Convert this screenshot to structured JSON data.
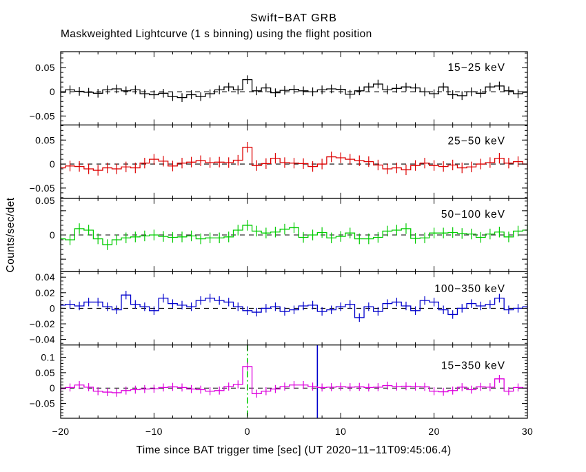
{
  "chart_data": {
    "type": "line",
    "title": "Swift−BAT GRB",
    "subtitle": "Maskweighted Lightcurve (1 s binning) using the flight position",
    "xlabel": "Time since BAT trigger time [sec] (UT 2020−11−11T09:45:06.4)",
    "ylabel": "Counts/sec/det",
    "xlim": [
      -20,
      30
    ],
    "xticks_major": [
      -20,
      -10,
      0,
      10,
      20,
      30
    ],
    "xtick_labels": [
      "−20",
      "−10",
      "0",
      "10",
      "20",
      "30"
    ],
    "xtick_minor_step": 2,
    "bin_width_sec": 1,
    "bin_centers_start": -20,
    "zero_line": {
      "style": "dashed",
      "color": "#000000"
    },
    "panels": [
      {
        "name": "15−25 keV",
        "color": "#000000",
        "ylim": [
          -0.0686,
          0.0829
        ],
        "ytick_minor_step": 0.01,
        "yticks": [
          {
            "v": 0.05,
            "label": "0.05"
          },
          {
            "v": 0,
            "label": "0"
          },
          {
            "v": -0.05,
            "label": "−0.05"
          }
        ],
        "err": 0.009,
        "values": [
          -0.001,
          0.004,
          0.001,
          -0.001,
          -0.003,
          0.004,
          0.006,
          0.002,
          0.004,
          -0.004,
          -0.006,
          -0.003,
          -0.01,
          -0.012,
          -0.006,
          -0.01,
          -0.004,
          0.004,
          0.01,
          0.004,
          0.025,
          0.002,
          0.008,
          -0.002,
          0.003,
          0.005,
          0.002,
          0.0,
          0.004,
          0.006,
          0.005,
          -0.005,
          0.002,
          0.01,
          0.016,
          0.004,
          0.007,
          0.01,
          0.008,
          0.0,
          -0.004,
          0.01,
          -0.006,
          -0.008,
          0.0,
          -0.003,
          0.01,
          0.012,
          0.002,
          -0.004,
          -0.001
        ]
      },
      {
        "name": "25−50 keV",
        "color": "#dd0000",
        "ylim": [
          -0.0714,
          0.0814
        ],
        "ytick_minor_step": 0.01,
        "yticks": [
          {
            "v": 0.05,
            "label": "0.05"
          },
          {
            "v": 0,
            "label": "0"
          },
          {
            "v": -0.05,
            "label": "−0.05"
          }
        ],
        "err": 0.011,
        "values": [
          -0.008,
          -0.004,
          -0.005,
          -0.01,
          -0.013,
          -0.008,
          -0.01,
          -0.006,
          -0.008,
          0.002,
          0.01,
          0.006,
          -0.004,
          0.002,
          0.004,
          0.007,
          0.003,
          0.004,
          0.003,
          0.008,
          0.035,
          -0.003,
          0.001,
          0.012,
          0.003,
          0.002,
          0.001,
          -0.005,
          0.0,
          0.015,
          0.013,
          0.01,
          0.007,
          0.005,
          -0.002,
          -0.01,
          -0.008,
          -0.012,
          -0.003,
          0.002,
          -0.003,
          -0.005,
          -0.002,
          -0.008,
          -0.006,
          0.0,
          0.003,
          0.012,
          0.002,
          0.005,
          0.0
        ]
      },
      {
        "name": "50−100 keV",
        "color": "#00cc00",
        "ylim": [
          -0.0757,
          0.0757
        ],
        "ytick_minor_step": 0.01,
        "yticks": [
          {
            "v": 0.05,
            "label": "0.05",
            "label_v": 0.0715
          },
          {
            "v": 0,
            "label": "0"
          },
          {
            "v": -0.05,
            "label": ""
          }
        ],
        "err": 0.011,
        "values": [
          -0.008,
          -0.01,
          0.013,
          0.01,
          -0.008,
          -0.02,
          -0.01,
          -0.006,
          -0.004,
          -0.002,
          0.0,
          -0.003,
          -0.005,
          -0.004,
          -0.002,
          -0.008,
          -0.006,
          -0.006,
          -0.004,
          0.01,
          0.02,
          0.008,
          0.004,
          0.006,
          0.012,
          0.015,
          -0.005,
          0.0,
          0.005,
          -0.006,
          -0.003,
          0.004,
          -0.008,
          -0.008,
          -0.005,
          0.008,
          0.01,
          0.013,
          -0.007,
          -0.006,
          0.004,
          0.004,
          0.005,
          0.003,
          0.002,
          -0.005,
          0.002,
          0.006,
          -0.004,
          0.008,
          0.01
        ]
      },
      {
        "name": "100−350 keV",
        "color": "#0000cc",
        "ylim": [
          -0.0471,
          0.0471
        ],
        "ytick_minor_step": 0.005,
        "yticks": [
          {
            "v": 0.04,
            "label": "0.04"
          },
          {
            "v": 0.02,
            "label": "0.02"
          },
          {
            "v": 0,
            "label": "0"
          },
          {
            "v": -0.02,
            "label": "−0.02"
          },
          {
            "v": -0.04,
            "label": "−0.04"
          }
        ],
        "err": 0.0055,
        "values": [
          0.004,
          0.005,
          0.003,
          0.008,
          0.008,
          0.002,
          -0.002,
          0.017,
          0.005,
          0.002,
          -0.003,
          0.013,
          0.006,
          0.004,
          0.002,
          0.01,
          0.013,
          0.01,
          0.008,
          0.002,
          -0.003,
          -0.005,
          0.0,
          0.002,
          -0.004,
          -0.002,
          0.003,
          0.004,
          -0.004,
          -0.002,
          0.002,
          0.005,
          -0.012,
          0.002,
          -0.004,
          0.006,
          0.008,
          0.003,
          -0.003,
          0.01,
          0.008,
          -0.002,
          -0.008,
          0.0,
          0.006,
          0.003,
          0.005,
          0.013,
          -0.002,
          0.0,
          0.002
        ]
      },
      {
        "name": "15−350 keV",
        "color": "#dd00dd",
        "ylim": [
          -0.0978,
          0.14
        ],
        "ytick_minor_step": 0.01,
        "yticks": [
          {
            "v": 0.1,
            "label": "0.1"
          },
          {
            "v": 0.05,
            "label": "0.05"
          },
          {
            "v": 0,
            "label": "0"
          },
          {
            "v": -0.05,
            "label": "−0.05"
          }
        ],
        "err": 0.013,
        "values": [
          -0.002,
          0.002,
          0.01,
          0.003,
          -0.01,
          -0.013,
          -0.015,
          -0.008,
          -0.005,
          -0.003,
          -0.002,
          0.002,
          0.004,
          0.002,
          -0.003,
          -0.005,
          -0.01,
          -0.008,
          0.005,
          0.012,
          0.07,
          -0.018,
          -0.01,
          -0.003,
          0.005,
          0.01,
          0.01,
          0.005,
          0.002,
          0.003,
          0.005,
          0.003,
          0.004,
          0.002,
          0.003,
          0.008,
          0.005,
          0.006,
          0.005,
          0.004,
          -0.01,
          -0.012,
          -0.008,
          0.003,
          -0.005,
          0.004,
          0.003,
          0.03,
          -0.01,
          0.002,
          0.0
        ],
        "vlines": [
          {
            "t": 0,
            "color": "#00cc00",
            "style": "dashdot",
            "name": "trigger-time-vline"
          },
          {
            "t": 7.5,
            "color": "#0000cc",
            "style": "solid",
            "name": "event-end-vline"
          }
        ]
      }
    ]
  }
}
